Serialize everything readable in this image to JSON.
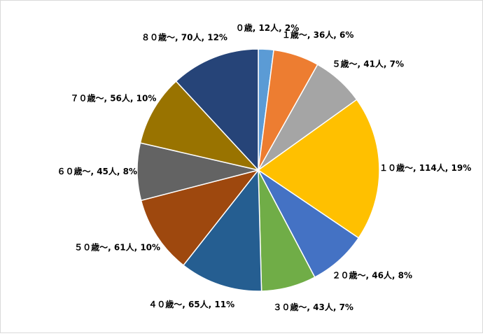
{
  "chart_data": {
    "type": "pie",
    "labels": [
      "０歳, 12人, 2%",
      "１歳～, 36人, 6%",
      "５歳～, 41人, 7%",
      "１０歳～, 114人, 19%",
      "２０歳～, 46人, 8%",
      "３０歳～, 43人, 7%",
      "４０歳～, 65人, 11%",
      "５０歳～, 61人, 10%",
      "６０歳～, 45人, 8%",
      "７０歳～, 56人, 10%",
      "８０歳～, 70人, 12%"
    ],
    "values": [
      12,
      36,
      41,
      114,
      46,
      43,
      65,
      61,
      45,
      56,
      70
    ],
    "colors": [
      "#5b9bd5",
      "#ed7d31",
      "#a5a5a5",
      "#ffc000",
      "#4472c4",
      "#70ad47",
      "#255e91",
      "#9e480e",
      "#636363",
      "#997300",
      "#264478"
    ]
  }
}
